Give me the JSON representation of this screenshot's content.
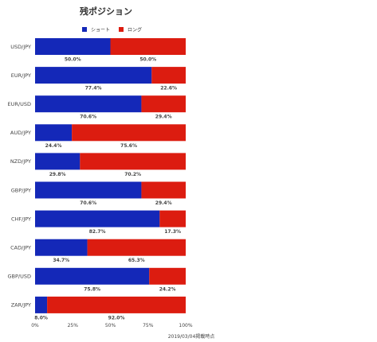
{
  "chart_data": {
    "type": "bar",
    "orientation": "horizontal",
    "stacked": true,
    "normalized_to": 100,
    "title": "残ポジション",
    "categories": [
      "USD/JPY",
      "EUR/JPY",
      "EUR/USD",
      "AUD/JPY",
      "NZD/JPY",
      "GBP/JPY",
      "CHF/JPY",
      "CAD/JPY",
      "GBP/USD",
      "ZAR/JPY"
    ],
    "series": [
      {
        "name": "ショート",
        "color": "#1428b8",
        "values": [
          50.0,
          77.4,
          70.6,
          24.4,
          29.8,
          70.6,
          82.7,
          34.7,
          75.8,
          8.0
        ]
      },
      {
        "name": "ロング",
        "color": "#dc1c10",
        "values": [
          50.0,
          22.6,
          29.4,
          75.6,
          70.2,
          29.4,
          17.3,
          65.3,
          24.2,
          92.0
        ]
      }
    ],
    "value_labels": {
      "short": [
        "50.0%",
        "77.4%",
        "70.6%",
        "24.4%",
        "29.8%",
        "70.6%",
        "82.7%",
        "34.7%",
        "75.8%",
        "8.0%"
      ],
      "long": [
        "50.0%",
        "22.6%",
        "29.4%",
        "75.6%",
        "70.2%",
        "29.4%",
        "17.3%",
        "65.3%",
        "24.2%",
        "92.0%"
      ]
    },
    "xlim": [
      0,
      100
    ],
    "xticks": [
      "0%",
      "25%",
      "50%",
      "75%",
      "100%"
    ],
    "grid": false,
    "legend": "top-center",
    "footnote": "2019/03/04掲載時点"
  }
}
